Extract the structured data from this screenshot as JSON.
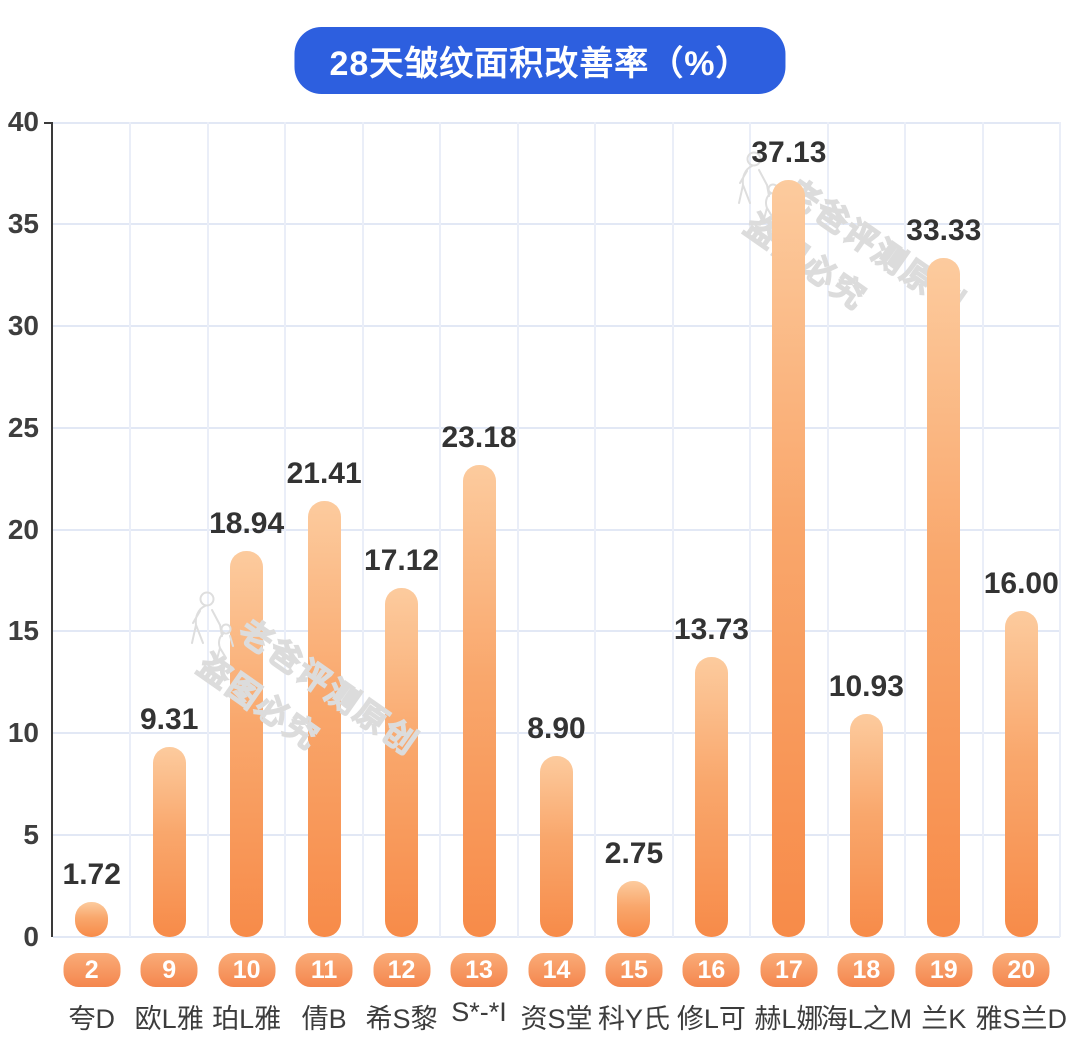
{
  "title": "28天皱纹面积改善率（%）",
  "watermark": {
    "line1": "老爸评测原创",
    "line2": "盗图必究"
  },
  "colors": {
    "title_pill_blue": "#2d5fdf",
    "bar_gradient_top": "#fccb9e",
    "bar_gradient_bottom": "#f78b49",
    "badge_gradient_top": "#faac78",
    "badge_gradient_bottom": "#f4864e",
    "value_label": "#333333",
    "axis_label": "#3e3e3e",
    "gridline": "#e2e8f5",
    "axis_line": "#3a3a3a"
  },
  "chart_data": {
    "type": "bar",
    "title": "28天皱纹面积改善率（%）",
    "xlabel": "",
    "ylabel": "",
    "ylim": [
      0,
      40
    ],
    "ytick_step": 5,
    "grid": true,
    "legend": false,
    "bars": [
      {
        "rank": "2",
        "brand": "夸D",
        "value": 1.72,
        "label": "1.72"
      },
      {
        "rank": "9",
        "brand": "欧L雅",
        "value": 9.31,
        "label": "9.31"
      },
      {
        "rank": "10",
        "brand": "珀L雅",
        "value": 18.94,
        "label": "18.94"
      },
      {
        "rank": "11",
        "brand": "倩B",
        "value": 21.41,
        "label": "21.41"
      },
      {
        "rank": "12",
        "brand": "希S黎",
        "value": 17.12,
        "label": "17.12"
      },
      {
        "rank": "13",
        "brand": "S*-*I",
        "value": 23.18,
        "label": "23.18"
      },
      {
        "rank": "14",
        "brand": "资S堂",
        "value": 8.9,
        "label": "8.90"
      },
      {
        "rank": "15",
        "brand": "科Y氏",
        "value": 2.75,
        "label": "2.75"
      },
      {
        "rank": "16",
        "brand": "修L可",
        "value": 13.73,
        "label": "13.73"
      },
      {
        "rank": "17",
        "brand": "赫L娜",
        "value": 37.13,
        "label": "37.13"
      },
      {
        "rank": "18",
        "brand": "海L之M",
        "value": 10.93,
        "label": "10.93"
      },
      {
        "rank": "19",
        "brand": "兰K",
        "value": 33.33,
        "label": "33.33"
      },
      {
        "rank": "20",
        "brand": "雅S兰D",
        "value": 16.0,
        "label": "16.00"
      }
    ]
  }
}
